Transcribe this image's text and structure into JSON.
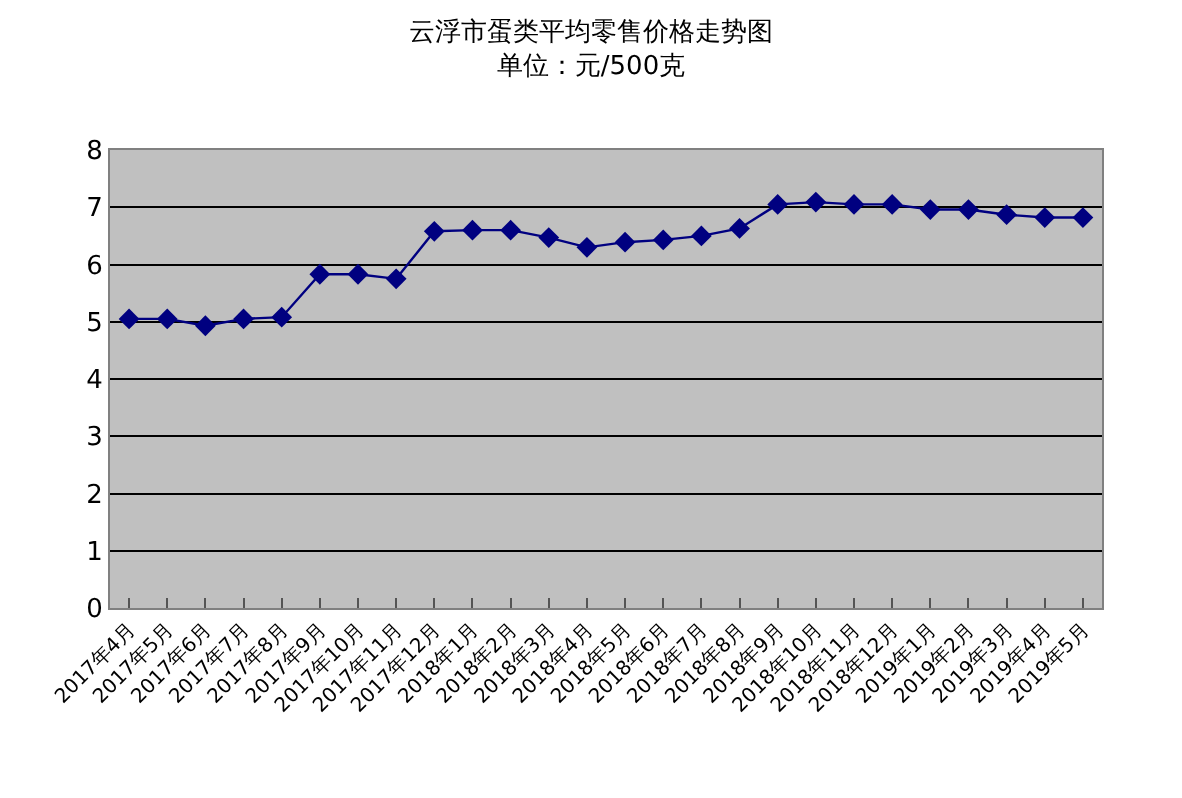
{
  "chart_data": {
    "type": "line",
    "title": "云浮市蛋类平均零售价格走势图",
    "subtitle": "单位：元/500克",
    "categories": [
      "2017年4月",
      "2017年5月",
      "2017年6月",
      "2017年7月",
      "2017年8月",
      "2017年9月",
      "2017年10月",
      "2017年11月",
      "2017年12月",
      "2018年1月",
      "2018年2月",
      "2018年3月",
      "2018年4月",
      "2018年5月",
      "2018年6月",
      "2018年7月",
      "2018年8月",
      "2018年9月",
      "2018年10月",
      "2018年11月",
      "2018年12月",
      "2019年1月",
      "2019年2月",
      "2019年3月",
      "2019年4月",
      "2019年5月"
    ],
    "series": [
      {
        "color": "#000080",
        "values": [
          5.05,
          5.05,
          4.93,
          5.05,
          5.08,
          5.83,
          5.83,
          5.75,
          6.58,
          6.6,
          6.6,
          6.47,
          6.3,
          6.39,
          6.43,
          6.5,
          6.63,
          7.05,
          7.09,
          7.05,
          7.05,
          6.96,
          6.96,
          6.87,
          6.82,
          6.82
        ]
      }
    ],
    "ylim": [
      0,
      8
    ],
    "yticks": [
      0,
      1,
      2,
      3,
      4,
      5,
      6,
      7,
      8
    ],
    "grid": "y",
    "legend": false,
    "marker": "diamond",
    "line_style": "solid"
  }
}
